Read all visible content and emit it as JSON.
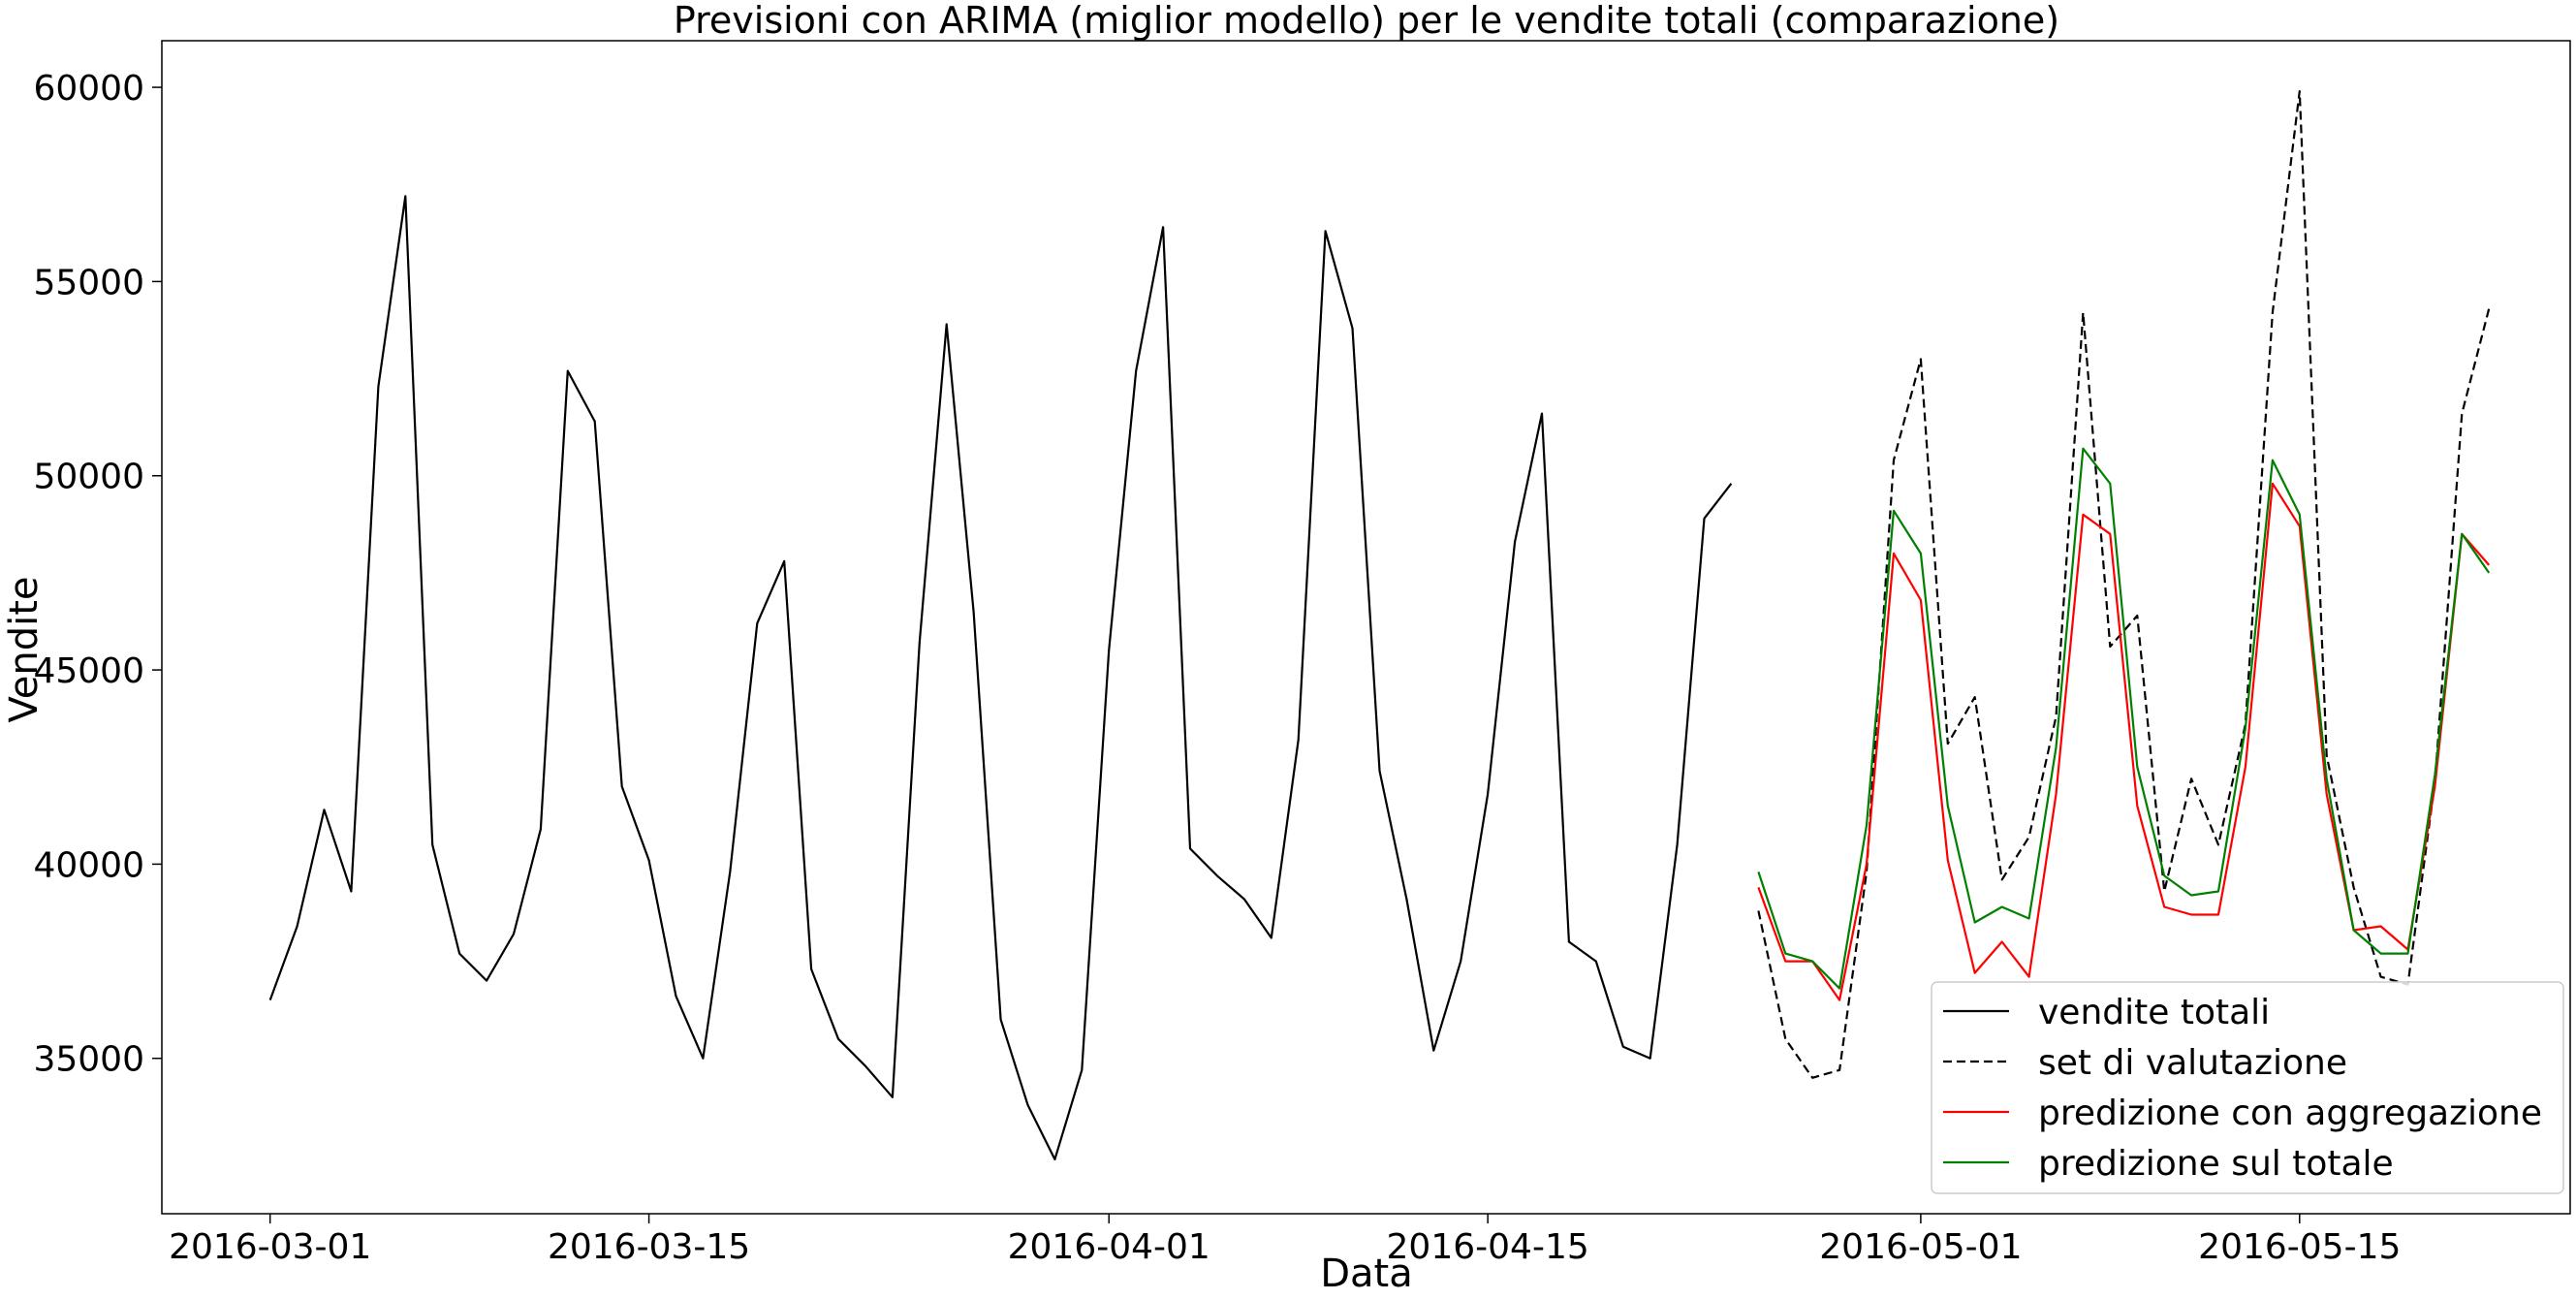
{
  "chart_data": {
    "type": "line",
    "title": "Previsioni con ARIMA (miglior modello) per le vendite totali (comparazione)",
    "xlabel": "Data",
    "ylabel": "Vendite",
    "x_start": "2016-03-01",
    "xlim": [
      "2016-02-26",
      "2016-05-25"
    ],
    "ylim": [
      31000,
      61200
    ],
    "xticks": [
      {
        "date": "2016-03-01",
        "label": "2016-03-01"
      },
      {
        "date": "2016-03-15",
        "label": "2016-03-15"
      },
      {
        "date": "2016-04-01",
        "label": "2016-04-01"
      },
      {
        "date": "2016-04-15",
        "label": "2016-04-15"
      },
      {
        "date": "2016-05-01",
        "label": "2016-05-01"
      },
      {
        "date": "2016-05-15",
        "label": "2016-05-15"
      }
    ],
    "yticks": [
      {
        "value": 35000,
        "label": "35000"
      },
      {
        "value": 40000,
        "label": "40000"
      },
      {
        "value": 45000,
        "label": "45000"
      },
      {
        "value": 50000,
        "label": "50000"
      },
      {
        "value": 55000,
        "label": "55000"
      },
      {
        "value": 60000,
        "label": "60000"
      }
    ],
    "grid": false,
    "legend_position": "lower-right",
    "series": [
      {
        "name": "vendite totali",
        "color": "#000000",
        "style": "solid",
        "start": "2016-03-01",
        "values": [
          36500,
          38400,
          41400,
          39300,
          52300,
          57200,
          40500,
          37700,
          37000,
          38200,
          40900,
          52700,
          51400,
          42000,
          40100,
          36600,
          35000,
          39800,
          46200,
          47800,
          37300,
          35500,
          34800,
          34000,
          45700,
          53900,
          46500,
          36000,
          33800,
          32400,
          34700,
          45500,
          52700,
          56400,
          40400,
          39700,
          39100,
          38100,
          43200,
          56300,
          53800,
          42400,
          39100,
          35200,
          37500,
          41800,
          48300,
          51600,
          38000,
          37500,
          35300,
          35000,
          40500,
          48900,
          49800
        ]
      },
      {
        "name": "set di valutazione",
        "color": "#000000",
        "style": "dashed",
        "start": "2016-04-25",
        "values": [
          38800,
          35500,
          34500,
          34700,
          39800,
          50400,
          53000,
          43100,
          44300,
          39600,
          40700,
          43800,
          54200,
          45600,
          46400,
          39300,
          42200,
          40500,
          43600,
          54200,
          59900,
          42800,
          39400,
          37100,
          36900,
          42100,
          51600,
          54300
        ]
      },
      {
        "name": "predizione con aggregazione",
        "color": "#ff0000",
        "style": "solid",
        "start": "2016-04-25",
        "values": [
          39400,
          37500,
          37500,
          36500,
          40000,
          48000,
          46800,
          40100,
          37200,
          38000,
          37100,
          41800,
          49000,
          48500,
          41500,
          38900,
          38700,
          38700,
          42500,
          49800,
          48700,
          41800,
          38300,
          38400,
          37800,
          42000,
          48500,
          47700
        ]
      },
      {
        "name": "predizione sul totale",
        "color": "#008000",
        "style": "solid",
        "start": "2016-04-25",
        "values": [
          39800,
          37700,
          37500,
          36800,
          41000,
          49100,
          48000,
          41500,
          38500,
          38900,
          38600,
          43000,
          50700,
          49800,
          42500,
          39700,
          39200,
          39300,
          43500,
          50400,
          49000,
          42200,
          38300,
          37700,
          37700,
          42300,
          48500,
          47500
        ]
      }
    ]
  }
}
